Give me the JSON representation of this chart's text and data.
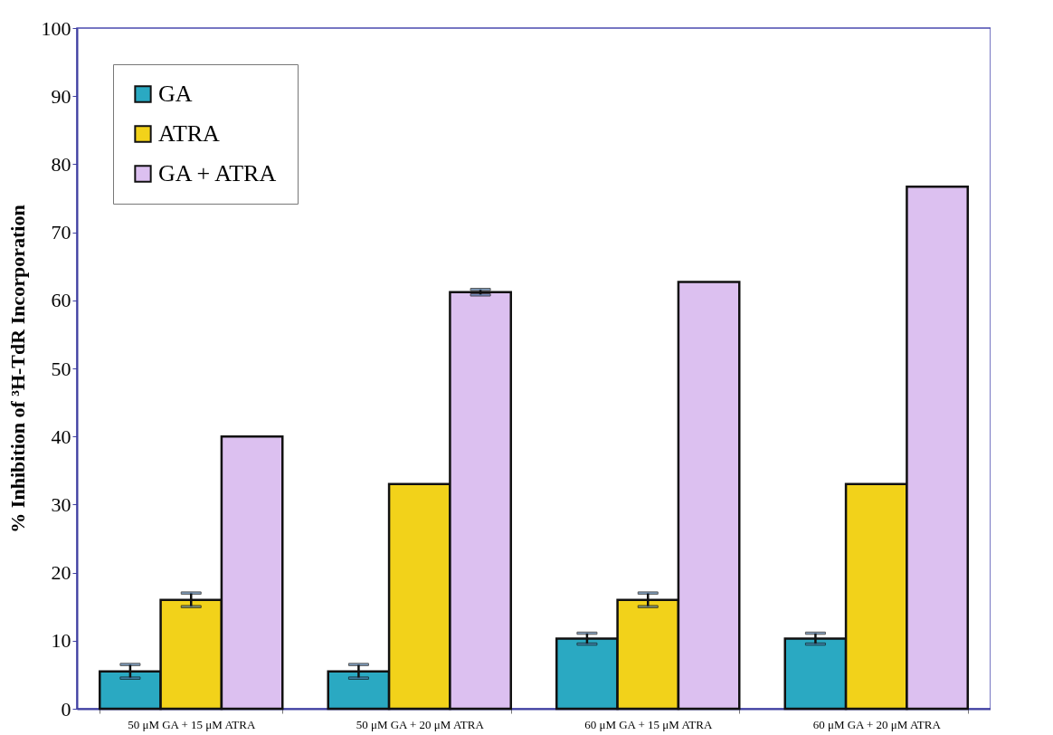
{
  "chart_data": {
    "type": "bar",
    "ylabel": "% Inhibition of ³H-TdR Incorporation",
    "categories": [
      "50 μM GA + 15 μM ATRA",
      "50 μM GA + 20 μM ATRA",
      "60 μM GA + 15 μM ATRA",
      "60 μM GA + 20 μM ATRA"
    ],
    "series": [
      {
        "name": "GA",
        "color": "#2aa9c2",
        "values": [
          5.5,
          5.5,
          10.3,
          10.3
        ],
        "errors": [
          1,
          1,
          0.8,
          0.8
        ]
      },
      {
        "name": "ATRA",
        "color": "#f2d21a",
        "values": [
          16,
          33,
          16,
          33
        ],
        "errors": [
          1,
          null,
          1,
          null
        ]
      },
      {
        "name": "GA + ATRA",
        "color": "#dcc0f0",
        "values": [
          40,
          61.2,
          62.7,
          76.7
        ],
        "errors": [
          null,
          0.4,
          null,
          null
        ]
      }
    ],
    "ylim": [
      0,
      100
    ],
    "yticks": [
      0,
      10,
      20,
      30,
      40,
      50,
      60,
      70,
      80,
      90,
      100
    ],
    "grid": false,
    "legend": "top left"
  }
}
